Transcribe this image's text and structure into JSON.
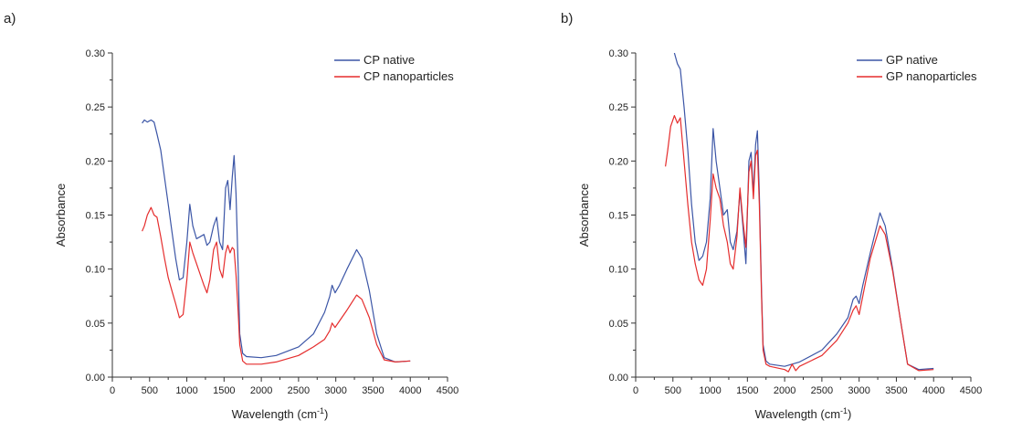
{
  "figure": {
    "panels": [
      "a)",
      "b)"
    ]
  },
  "chart_data": [
    {
      "type": "line",
      "panel_label": "a)",
      "xlabel": "Wavelength (cm",
      "xlabel_sup": "-1",
      "xlabel_end": ")",
      "ylabel": "Absorbance",
      "xlim": [
        0,
        4500
      ],
      "ylim": [
        0,
        0.3
      ],
      "xticks": [
        0,
        500,
        1000,
        1500,
        2000,
        2500,
        3000,
        3500,
        4000,
        4500
      ],
      "yticks": [
        0.0,
        0.05,
        0.1,
        0.15,
        0.2,
        0.25,
        0.3
      ],
      "ytick_labels": [
        "0.00",
        "0.05",
        "0.10",
        "0.15",
        "0.20",
        "0.25",
        "0.30"
      ],
      "legend_position": "top-right",
      "series": [
        {
          "name": "CP native",
          "color": "#3b55a6",
          "points": [
            [
              400,
              0.235
            ],
            [
              430,
              0.238
            ],
            [
              470,
              0.236
            ],
            [
              520,
              0.238
            ],
            [
              560,
              0.236
            ],
            [
              600,
              0.225
            ],
            [
              650,
              0.21
            ],
            [
              700,
              0.185
            ],
            [
              750,
              0.16
            ],
            [
              800,
              0.135
            ],
            [
              850,
              0.11
            ],
            [
              900,
              0.09
            ],
            [
              950,
              0.092
            ],
            [
              1000,
              0.125
            ],
            [
              1040,
              0.16
            ],
            [
              1080,
              0.14
            ],
            [
              1130,
              0.128
            ],
            [
              1180,
              0.13
            ],
            [
              1230,
              0.132
            ],
            [
              1270,
              0.122
            ],
            [
              1310,
              0.125
            ],
            [
              1360,
              0.14
            ],
            [
              1400,
              0.148
            ],
            [
              1440,
              0.125
            ],
            [
              1480,
              0.118
            ],
            [
              1520,
              0.175
            ],
            [
              1550,
              0.182
            ],
            [
              1580,
              0.155
            ],
            [
              1610,
              0.185
            ],
            [
              1635,
              0.205
            ],
            [
              1660,
              0.17
            ],
            [
              1690,
              0.1
            ],
            [
              1710,
              0.04
            ],
            [
              1750,
              0.022
            ],
            [
              1800,
              0.019
            ],
            [
              2000,
              0.018
            ],
            [
              2200,
              0.02
            ],
            [
              2500,
              0.028
            ],
            [
              2700,
              0.04
            ],
            [
              2850,
              0.06
            ],
            [
              2920,
              0.075
            ],
            [
              2950,
              0.085
            ],
            [
              2990,
              0.078
            ],
            [
              3050,
              0.085
            ],
            [
              3150,
              0.1
            ],
            [
              3280,
              0.118
            ],
            [
              3350,
              0.11
            ],
            [
              3450,
              0.08
            ],
            [
              3550,
              0.04
            ],
            [
              3650,
              0.018
            ],
            [
              3800,
              0.014
            ],
            [
              4000,
              0.015
            ]
          ]
        },
        {
          "name": "CP nanoparticles",
          "color": "#e52d2d",
          "points": [
            [
              400,
              0.135
            ],
            [
              430,
              0.14
            ],
            [
              470,
              0.15
            ],
            [
              520,
              0.157
            ],
            [
              560,
              0.15
            ],
            [
              600,
              0.148
            ],
            [
              650,
              0.13
            ],
            [
              700,
              0.11
            ],
            [
              750,
              0.092
            ],
            [
              800,
              0.08
            ],
            [
              850,
              0.068
            ],
            [
              900,
              0.055
            ],
            [
              950,
              0.058
            ],
            [
              1000,
              0.09
            ],
            [
              1040,
              0.125
            ],
            [
              1080,
              0.115
            ],
            [
              1130,
              0.105
            ],
            [
              1180,
              0.095
            ],
            [
              1230,
              0.085
            ],
            [
              1270,
              0.078
            ],
            [
              1310,
              0.09
            ],
            [
              1360,
              0.118
            ],
            [
              1400,
              0.125
            ],
            [
              1440,
              0.1
            ],
            [
              1480,
              0.092
            ],
            [
              1520,
              0.115
            ],
            [
              1550,
              0.122
            ],
            [
              1580,
              0.115
            ],
            [
              1610,
              0.12
            ],
            [
              1635,
              0.118
            ],
            [
              1660,
              0.095
            ],
            [
              1690,
              0.06
            ],
            [
              1710,
              0.03
            ],
            [
              1750,
              0.015
            ],
            [
              1800,
              0.012
            ],
            [
              2000,
              0.012
            ],
            [
              2200,
              0.014
            ],
            [
              2500,
              0.02
            ],
            [
              2700,
              0.028
            ],
            [
              2850,
              0.035
            ],
            [
              2920,
              0.043
            ],
            [
              2950,
              0.05
            ],
            [
              2990,
              0.046
            ],
            [
              3050,
              0.052
            ],
            [
              3150,
              0.062
            ],
            [
              3280,
              0.076
            ],
            [
              3350,
              0.072
            ],
            [
              3450,
              0.055
            ],
            [
              3550,
              0.03
            ],
            [
              3650,
              0.016
            ],
            [
              3800,
              0.014
            ],
            [
              4000,
              0.015
            ]
          ]
        }
      ]
    },
    {
      "type": "line",
      "panel_label": "b)",
      "xlabel": "Wavelength (cm",
      "xlabel_sup": "-1",
      "xlabel_end": ")",
      "ylabel": "Absorbance",
      "xlim": [
        0,
        4500
      ],
      "ylim": [
        0,
        0.3
      ],
      "xticks": [
        0,
        500,
        1000,
        1500,
        2000,
        2500,
        3000,
        3500,
        4000,
        4500
      ],
      "yticks": [
        0.0,
        0.05,
        0.1,
        0.15,
        0.2,
        0.25,
        0.3
      ],
      "ytick_labels": [
        "0.00",
        "0.05",
        "0.10",
        "0.15",
        "0.20",
        "0.25",
        "0.30"
      ],
      "legend_position": "top-right",
      "series": [
        {
          "name": "GP native",
          "color": "#3b55a6",
          "points": [
            [
              520,
              0.3
            ],
            [
              560,
              0.29
            ],
            [
              600,
              0.285
            ],
            [
              650,
              0.25
            ],
            [
              700,
              0.21
            ],
            [
              750,
              0.16
            ],
            [
              800,
              0.125
            ],
            [
              850,
              0.108
            ],
            [
              900,
              0.112
            ],
            [
              950,
              0.125
            ],
            [
              1000,
              0.165
            ],
            [
              1040,
              0.23
            ],
            [
              1080,
              0.2
            ],
            [
              1130,
              0.175
            ],
            [
              1180,
              0.15
            ],
            [
              1230,
              0.155
            ],
            [
              1270,
              0.125
            ],
            [
              1310,
              0.118
            ],
            [
              1360,
              0.135
            ],
            [
              1400,
              0.172
            ],
            [
              1440,
              0.14
            ],
            [
              1480,
              0.105
            ],
            [
              1520,
              0.2
            ],
            [
              1550,
              0.208
            ],
            [
              1580,
              0.17
            ],
            [
              1610,
              0.215
            ],
            [
              1635,
              0.228
            ],
            [
              1660,
              0.17
            ],
            [
              1690,
              0.08
            ],
            [
              1710,
              0.03
            ],
            [
              1750,
              0.015
            ],
            [
              1800,
              0.012
            ],
            [
              2000,
              0.01
            ],
            [
              2200,
              0.014
            ],
            [
              2500,
              0.025
            ],
            [
              2700,
              0.04
            ],
            [
              2850,
              0.055
            ],
            [
              2920,
              0.072
            ],
            [
              2960,
              0.075
            ],
            [
              3000,
              0.068
            ],
            [
              3050,
              0.085
            ],
            [
              3150,
              0.115
            ],
            [
              3280,
              0.152
            ],
            [
              3350,
              0.14
            ],
            [
              3450,
              0.1
            ],
            [
              3550,
              0.055
            ],
            [
              3650,
              0.012
            ],
            [
              3800,
              0.007
            ],
            [
              4000,
              0.008
            ]
          ]
        },
        {
          "name": "GP nanoparticles",
          "color": "#e52d2d",
          "points": [
            [
              400,
              0.195
            ],
            [
              430,
              0.21
            ],
            [
              470,
              0.232
            ],
            [
              520,
              0.242
            ],
            [
              560,
              0.235
            ],
            [
              600,
              0.24
            ],
            [
              650,
              0.2
            ],
            [
              700,
              0.16
            ],
            [
              750,
              0.125
            ],
            [
              800,
              0.105
            ],
            [
              850,
              0.09
            ],
            [
              900,
              0.085
            ],
            [
              950,
              0.1
            ],
            [
              1000,
              0.145
            ],
            [
              1040,
              0.188
            ],
            [
              1080,
              0.175
            ],
            [
              1130,
              0.165
            ],
            [
              1180,
              0.14
            ],
            [
              1230,
              0.125
            ],
            [
              1270,
              0.105
            ],
            [
              1310,
              0.1
            ],
            [
              1360,
              0.13
            ],
            [
              1400,
              0.175
            ],
            [
              1440,
              0.145
            ],
            [
              1480,
              0.12
            ],
            [
              1520,
              0.19
            ],
            [
              1550,
              0.2
            ],
            [
              1580,
              0.165
            ],
            [
              1610,
              0.205
            ],
            [
              1635,
              0.21
            ],
            [
              1660,
              0.16
            ],
            [
              1690,
              0.075
            ],
            [
              1710,
              0.025
            ],
            [
              1750,
              0.012
            ],
            [
              1800,
              0.01
            ],
            [
              2000,
              0.007
            ],
            [
              2050,
              0.005
            ],
            [
              2100,
              0.012
            ],
            [
              2150,
              0.006
            ],
            [
              2200,
              0.01
            ],
            [
              2500,
              0.02
            ],
            [
              2700,
              0.034
            ],
            [
              2850,
              0.05
            ],
            [
              2920,
              0.062
            ],
            [
              2960,
              0.066
            ],
            [
              3000,
              0.058
            ],
            [
              3050,
              0.075
            ],
            [
              3150,
              0.11
            ],
            [
              3280,
              0.14
            ],
            [
              3350,
              0.132
            ],
            [
              3450,
              0.098
            ],
            [
              3550,
              0.055
            ],
            [
              3650,
              0.012
            ],
            [
              3800,
              0.006
            ],
            [
              4000,
              0.007
            ]
          ]
        }
      ]
    }
  ]
}
